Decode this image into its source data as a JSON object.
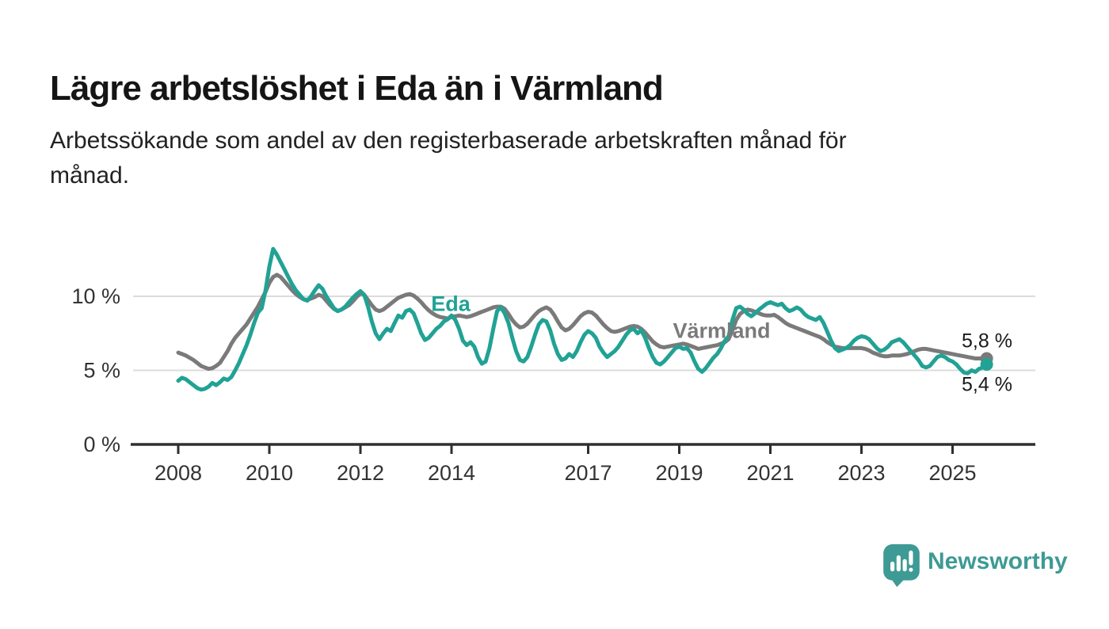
{
  "header": {
    "title": "Lägre arbetslöshet i Eda än i Värmland",
    "subtitle": "Arbetssökande som andel av den registerbaserade arbetskraften månad för månad.",
    "subtitle_lines": [
      "Arbetssökande som andel av den registerbaserade arbetskraften månad för",
      "månad."
    ]
  },
  "chart_data": {
    "type": "line",
    "title": "Lägre arbetslöshet i Eda än i Värmland",
    "unit": "%",
    "frequency": "monthly",
    "x_start": "2008-01",
    "x_end": "2025-10",
    "xlabel": "",
    "ylabel": "",
    "ylim": [
      0,
      14
    ],
    "grid": "horizontal",
    "legend_position": "inline-labels",
    "x_tick_years": [
      2008,
      2010,
      2012,
      2014,
      2017,
      2019,
      2021,
      2023,
      2025
    ],
    "x_tick_labels": [
      "2008",
      "2010",
      "2012",
      "2014",
      "2017",
      "2019",
      "2021",
      "2023",
      "2025"
    ],
    "y_tick_values": [
      0,
      5,
      10
    ],
    "y_tick_labels": [
      "0 %",
      "5 %",
      "10 %"
    ],
    "colors": {
      "eda": "#21A295",
      "varmland": "#7A7A7A",
      "gridline": "#DCDCDC",
      "axis": "#2F2F2F"
    },
    "series": [
      {
        "name": "Värmland",
        "color": "#7A7A7A",
        "end_label": "5,8 %",
        "end_value": 5.8,
        "values": [
          6.2,
          6.1,
          6.0,
          5.85,
          5.7,
          5.5,
          5.3,
          5.2,
          5.1,
          5.15,
          5.3,
          5.5,
          5.9,
          6.3,
          6.8,
          7.2,
          7.5,
          7.8,
          8.1,
          8.5,
          8.9,
          9.3,
          9.8,
          10.3,
          10.9,
          11.3,
          11.45,
          11.3,
          11.0,
          10.7,
          10.4,
          10.15,
          9.95,
          9.8,
          9.75,
          9.85,
          9.95,
          10.1,
          10.0,
          9.7,
          9.4,
          9.15,
          9.0,
          9.1,
          9.25,
          9.4,
          9.65,
          9.95,
          10.2,
          10.1,
          9.75,
          9.4,
          9.1,
          9.0,
          9.1,
          9.3,
          9.5,
          9.7,
          9.9,
          10.0,
          10.1,
          10.15,
          10.05,
          9.85,
          9.6,
          9.3,
          9.05,
          8.85,
          8.7,
          8.6,
          8.55,
          8.5,
          8.6,
          8.65,
          8.7,
          8.65,
          8.6,
          8.65,
          8.75,
          8.85,
          8.95,
          9.05,
          9.15,
          9.25,
          9.3,
          9.3,
          9.15,
          8.8,
          8.4,
          8.1,
          7.9,
          7.95,
          8.15,
          8.45,
          8.75,
          9.0,
          9.15,
          9.25,
          9.1,
          8.75,
          8.3,
          7.9,
          7.7,
          7.8,
          8.05,
          8.35,
          8.65,
          8.85,
          8.95,
          8.9,
          8.7,
          8.4,
          8.1,
          7.85,
          7.65,
          7.6,
          7.65,
          7.75,
          7.85,
          7.95,
          8.0,
          7.95,
          7.8,
          7.55,
          7.25,
          6.95,
          6.75,
          6.6,
          6.55,
          6.6,
          6.65,
          6.7,
          6.75,
          6.8,
          6.75,
          6.65,
          6.55,
          6.45,
          6.5,
          6.55,
          6.6,
          6.65,
          6.7,
          6.8,
          6.9,
          7.1,
          7.7,
          8.4,
          8.8,
          9.0,
          9.1,
          9.05,
          8.95,
          8.85,
          8.75,
          8.7,
          8.7,
          8.75,
          8.6,
          8.4,
          8.2,
          8.05,
          7.95,
          7.85,
          7.75,
          7.65,
          7.55,
          7.45,
          7.35,
          7.25,
          7.1,
          6.9,
          6.75,
          6.6,
          6.55,
          6.5,
          6.5,
          6.5,
          6.5,
          6.5,
          6.5,
          6.45,
          6.35,
          6.2,
          6.1,
          6.0,
          5.95,
          5.95,
          6.0,
          6.0,
          6.0,
          6.05,
          6.1,
          6.2,
          6.3,
          6.4,
          6.45,
          6.45,
          6.4,
          6.35,
          6.3,
          6.25,
          6.2,
          6.15,
          6.1,
          6.05,
          6.0,
          5.95,
          5.9,
          5.85,
          5.8,
          5.8,
          5.8,
          5.8
        ]
      },
      {
        "name": "Eda",
        "color": "#21A295",
        "end_label": "5,4 %",
        "end_value": 5.4,
        "values": [
          4.3,
          4.5,
          4.4,
          4.2,
          4.0,
          3.8,
          3.7,
          3.75,
          3.9,
          4.15,
          4.0,
          4.2,
          4.45,
          4.35,
          4.55,
          5.0,
          5.5,
          6.1,
          6.7,
          7.4,
          8.2,
          8.9,
          9.2,
          10.4,
          12.0,
          13.2,
          12.8,
          12.3,
          11.8,
          11.3,
          10.8,
          10.4,
          10.1,
          9.8,
          9.7,
          10.0,
          10.4,
          10.75,
          10.5,
          10.0,
          9.6,
          9.2,
          9.0,
          9.1,
          9.3,
          9.6,
          9.9,
          10.15,
          10.35,
          10.1,
          9.3,
          8.3,
          7.5,
          7.1,
          7.5,
          7.8,
          7.65,
          8.2,
          8.7,
          8.55,
          9.0,
          9.1,
          8.85,
          8.2,
          7.5,
          7.05,
          7.2,
          7.5,
          7.8,
          8.0,
          8.3,
          8.45,
          8.7,
          8.4,
          7.8,
          7.0,
          6.7,
          6.9,
          6.6,
          5.9,
          5.45,
          5.6,
          6.5,
          7.8,
          9.0,
          9.25,
          8.85,
          8.2,
          7.2,
          6.3,
          5.7,
          5.6,
          5.9,
          6.6,
          7.4,
          8.1,
          8.4,
          8.3,
          7.7,
          6.8,
          6.1,
          5.7,
          5.8,
          6.1,
          5.9,
          6.3,
          6.9,
          7.4,
          7.65,
          7.5,
          7.2,
          6.6,
          6.2,
          5.9,
          6.1,
          6.3,
          6.6,
          7.0,
          7.4,
          7.7,
          7.8,
          7.5,
          7.7,
          7.2,
          6.5,
          5.9,
          5.5,
          5.4,
          5.6,
          5.9,
          6.2,
          6.5,
          6.6,
          6.45,
          6.5,
          6.2,
          5.6,
          5.1,
          4.9,
          5.15,
          5.5,
          5.85,
          6.1,
          6.5,
          7.0,
          7.3,
          8.4,
          9.2,
          9.3,
          9.1,
          8.8,
          8.65,
          8.85,
          9.1,
          9.3,
          9.5,
          9.6,
          9.5,
          9.4,
          9.5,
          9.2,
          9.0,
          9.1,
          9.25,
          9.1,
          8.8,
          8.6,
          8.5,
          8.4,
          8.6,
          8.2,
          7.6,
          7.0,
          6.5,
          6.3,
          6.4,
          6.5,
          6.7,
          7.0,
          7.2,
          7.3,
          7.25,
          7.1,
          6.8,
          6.5,
          6.3,
          6.4,
          6.6,
          6.9,
          7.0,
          7.1,
          6.9,
          6.6,
          6.3,
          6.0,
          5.7,
          5.3,
          5.2,
          5.3,
          5.6,
          5.9,
          6.0,
          5.9,
          5.7,
          5.6,
          5.4,
          5.1,
          4.85,
          4.8,
          5.0,
          4.9,
          5.1,
          5.2,
          5.4
        ]
      }
    ]
  },
  "branding": {
    "logo_text": "Newsworthy",
    "logo_color": "#3E9A94",
    "logo_icon": "bar-chart-speech-bubble"
  }
}
